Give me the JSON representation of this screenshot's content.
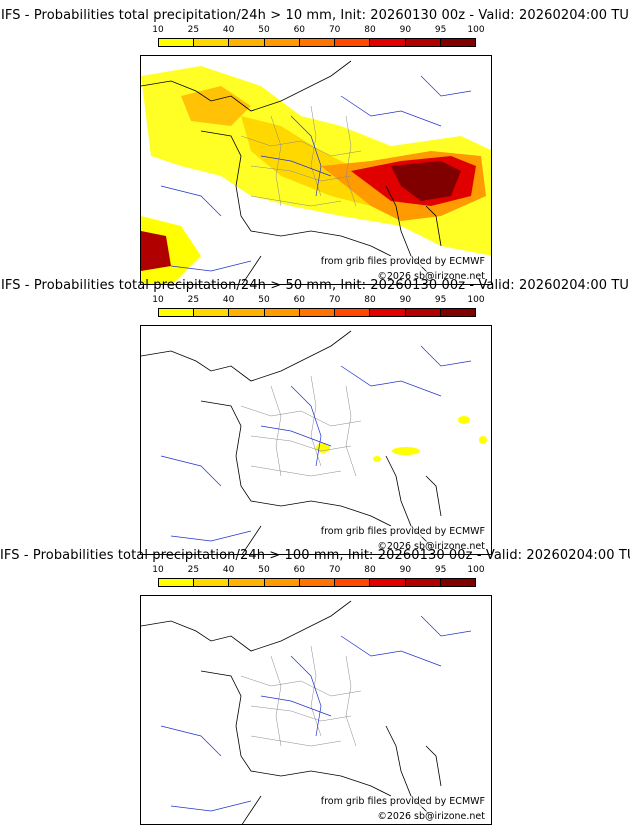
{
  "colorbar": {
    "ticks": [
      "10",
      "25",
      "40",
      "50",
      "60",
      "70",
      "80",
      "90",
      "95",
      "100"
    ],
    "colors": [
      "#ffff00",
      "#ffd800",
      "#ffb300",
      "#ff9a00",
      "#ff7400",
      "#ff4800",
      "#e00000",
      "#b00000",
      "#800000"
    ]
  },
  "panels": [
    {
      "title": "IFS - Probabilities total precipitation/24h > 10 mm, Init: 20260130 00z - Valid: 20260204:00 TU",
      "credit_source": "from grib files provided by ECMWF",
      "credit_copyright": "©2026 sb@irizone.net",
      "precip_level": "high"
    },
    {
      "title": "IFS - Probabilities total precipitation/24h > 50 mm, Init: 20260130 00z - Valid: 20260204:00 TU",
      "credit_source": "from grib files provided by ECMWF",
      "credit_copyright": "©2026 sb@irizone.net",
      "precip_level": "low"
    },
    {
      "title": "IFS - Probabilities total precipitation/24h > 100 mm, Init: 20260130 00z - Valid: 20260204:00 TU",
      "credit_source": "from grib files provided by ECMWF",
      "credit_copyright": "©2026 sb@irizone.net",
      "precip_level": "none"
    }
  ]
}
